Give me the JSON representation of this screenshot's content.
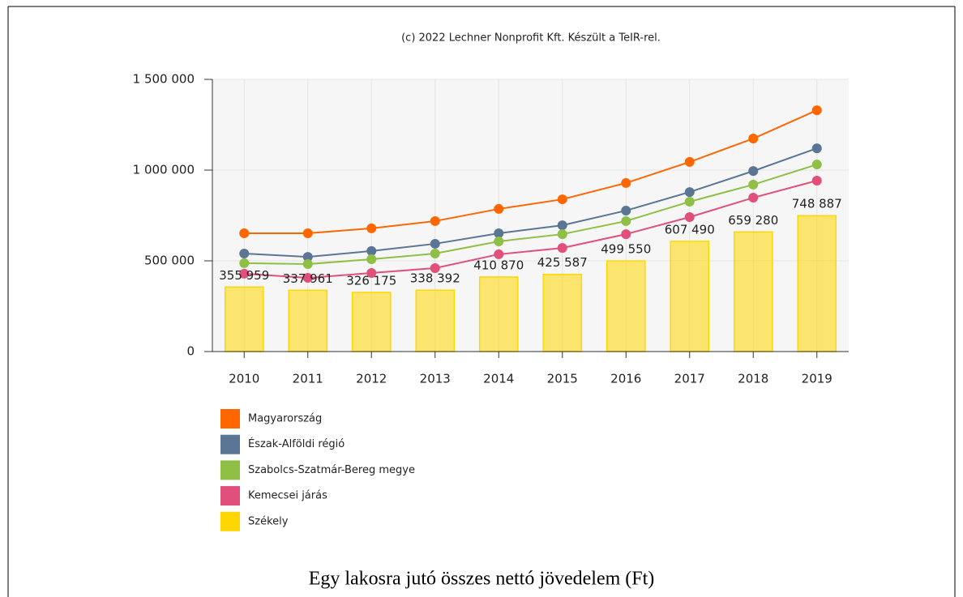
{
  "chart_data": {
    "type": "bar",
    "credit": "(c) 2022 Lechner Nonprofit Kft. Készült a TeIR-rel.",
    "caption": "Egy lakosra jutó összes nettó jövedelem (Ft)",
    "categories": [
      "2010",
      "2011",
      "2012",
      "2013",
      "2014",
      "2015",
      "2016",
      "2017",
      "2018",
      "2019"
    ],
    "ylim": [
      0,
      1500000
    ],
    "yticks": [
      0,
      {
        "value": 500000,
        "label": "500 000"
      },
      {
        "value": 1000000,
        "label": "1 000 000"
      },
      {
        "value": 1500000,
        "label": "1 500 000"
      }
    ],
    "grid": true,
    "legend": "bottom-left",
    "series": [
      {
        "name": "Magyarország",
        "type": "line",
        "color": "#ff6600",
        "values": [
          652000,
          652000,
          679000,
          719000,
          786000,
          839000,
          929000,
          1045000,
          1174000,
          1330000
        ]
      },
      {
        "name": "Észak-Alföldi régió",
        "type": "line",
        "color": "#5b7695",
        "values": [
          540000,
          522000,
          554000,
          594000,
          652000,
          696000,
          777000,
          879000,
          995000,
          1120000
        ]
      },
      {
        "name": "Szabolcs-Szatmár-Bereg megye",
        "type": "line",
        "color": "#8fbf44",
        "values": [
          487000,
          482000,
          509000,
          540000,
          607000,
          647000,
          719000,
          826000,
          920000,
          1031000
        ]
      },
      {
        "name": "Kemecsei járás",
        "type": "line",
        "color": "#e0507a",
        "values": [
          429000,
          406000,
          433000,
          460000,
          536000,
          571000,
          647000,
          741000,
          848000,
          942000
        ]
      },
      {
        "name": "Székely",
        "type": "bar",
        "color": "#ffd700",
        "values": [
          355959,
          337961,
          326175,
          338392,
          410870,
          425587,
          499550,
          607490,
          659280,
          748887
        ],
        "value_labels": [
          "355 959",
          "337 961",
          "326 175",
          "338 392",
          "410 870",
          "425 587",
          "499 550",
          "607 490",
          "659 280",
          "748 887"
        ]
      }
    ]
  }
}
